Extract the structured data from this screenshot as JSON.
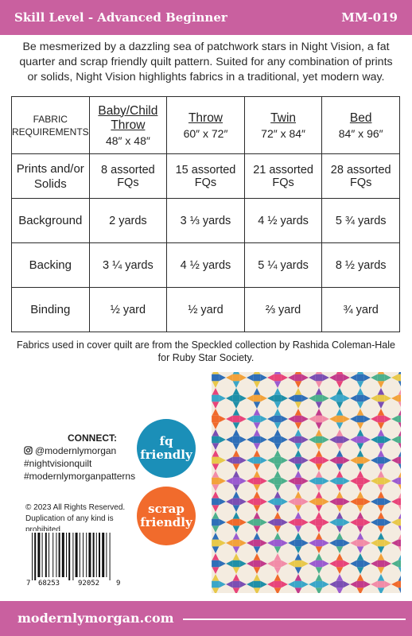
{
  "header": {
    "skill_level": "Skill Level - Advanced Beginner",
    "code": "MM-019"
  },
  "intro": "Be mesmerized by a dazzling sea of patchwork stars in Night Vision, a fat quarter and scrap friendly quilt pattern.  Suited for any combination of prints or solids, Night Vision highlights fabrics in a traditional, yet modern way.",
  "table": {
    "corner_label_1": "FABRIC",
    "corner_label_2": "REQUIREMENTS",
    "sizes": [
      {
        "name": "Baby/Child Throw",
        "dims": "48″ x 48″"
      },
      {
        "name": "Throw",
        "dims": "60″ x 72″"
      },
      {
        "name": "Twin",
        "dims": "72″ x 84″"
      },
      {
        "name": "Bed",
        "dims": "84″ x 96″"
      }
    ],
    "rows": [
      {
        "label": "Prints and/or Solids",
        "values": [
          "8 assorted FQs",
          "15 assorted FQs",
          "21 assorted FQs",
          "28 assorted FQs"
        ]
      },
      {
        "label": "Background",
        "values": [
          "2 yards",
          "3 ⅓ yards",
          "4 ½ yards",
          "5 ¾ yards"
        ]
      },
      {
        "label": "Backing",
        "values": [
          "3 ¼ yards",
          "4 ½ yards",
          "5 ¼ yards",
          "8 ½ yards"
        ]
      },
      {
        "label": "Binding",
        "values": [
          "½ yard",
          "½ yard",
          "⅔ yard",
          "¾ yard"
        ]
      }
    ]
  },
  "note": "Fabrics used in cover quilt are from the Speckled collection by Rashida Coleman-Hale for Ruby Star Society.",
  "connect": {
    "title": "CONNECT:",
    "handle": "@modernlymorgan",
    "tag1": "#nightvisionquilt",
    "tag2": "#modernlymorganpatterns"
  },
  "copyright": "© 2023  All Rights Reserved.",
  "duplication": "Duplication of any kind is prohibited.",
  "badges": {
    "fq_line1": "fq",
    "fq_line2": "friendly",
    "scrap_line1": "scrap",
    "scrap_line2": "friendly"
  },
  "barcode": {
    "first": "7",
    "left": "68253",
    "right": "92052",
    "last": "9"
  },
  "footer": {
    "url": "modernlymorgan.com"
  },
  "colors": {
    "brand_pink": "#c9609f",
    "fq_blue": "#1b8fb8",
    "scrap_orange": "#f16b2c"
  }
}
